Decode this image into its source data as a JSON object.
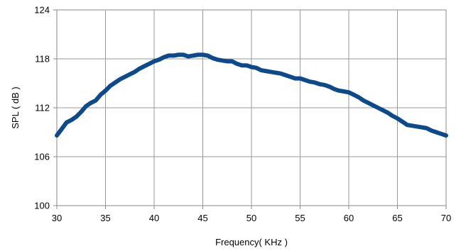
{
  "chart_data": {
    "type": "line",
    "xlabel": "Frequency( KHz )",
    "ylabel": "SPL ( dB )",
    "xlim": [
      30,
      70
    ],
    "ylim": [
      100,
      124
    ],
    "x_ticks": [
      30,
      35,
      40,
      45,
      50,
      55,
      60,
      65,
      70
    ],
    "y_ticks": [
      100,
      106,
      112,
      118,
      124
    ],
    "grid": true,
    "line_color": "#0d4a8c",
    "series": [
      {
        "x": [
          30,
          30.5,
          31,
          31.5,
          32,
          32.5,
          33,
          33.5,
          34,
          34.5,
          35,
          35.5,
          36,
          36.5,
          37,
          37.5,
          38,
          38.5,
          39,
          39.5,
          40,
          40.5,
          41,
          41.5,
          42,
          42.5,
          43,
          43.5,
          44,
          44.5,
          45,
          45.5,
          46,
          46.5,
          47,
          47.5,
          48,
          48.5,
          49,
          49.5,
          50,
          50.5,
          51,
          51.5,
          52,
          52.5,
          53,
          53.5,
          54,
          54.5,
          55,
          55.5,
          56,
          56.5,
          57,
          57.5,
          58,
          58.5,
          59,
          59.5,
          60,
          60.5,
          61,
          61.5,
          62,
          62.5,
          63,
          63.5,
          64,
          64.5,
          65,
          65.5,
          66,
          66.5,
          67,
          67.5,
          68,
          68.5,
          69,
          69.5,
          70
        ],
        "values": [
          108.6,
          109.4,
          110.2,
          110.5,
          110.9,
          111.5,
          112.2,
          112.6,
          112.9,
          113.6,
          114.1,
          114.7,
          115.1,
          115.5,
          115.8,
          116.1,
          116.4,
          116.8,
          117.1,
          117.4,
          117.7,
          117.9,
          118.2,
          118.4,
          118.4,
          118.5,
          118.5,
          118.3,
          118.4,
          118.5,
          118.5,
          118.4,
          118.1,
          117.9,
          117.8,
          117.7,
          117.7,
          117.4,
          117.2,
          117.2,
          117.0,
          116.9,
          116.6,
          116.5,
          116.4,
          116.3,
          116.2,
          116.0,
          115.8,
          115.6,
          115.6,
          115.4,
          115.2,
          115.1,
          114.9,
          114.8,
          114.6,
          114.3,
          114.1,
          114.0,
          113.9,
          113.6,
          113.3,
          112.9,
          112.6,
          112.3,
          112.0,
          111.7,
          111.4,
          111.0,
          110.7,
          110.3,
          109.9,
          109.8,
          109.7,
          109.6,
          109.5,
          109.2,
          109.0,
          108.8,
          108.6
        ]
      }
    ]
  }
}
